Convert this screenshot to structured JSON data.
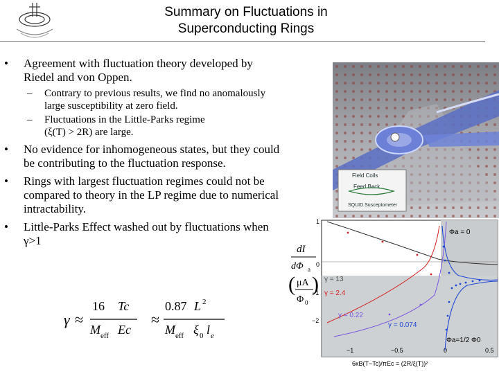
{
  "header": {
    "logo": "institution-seal-logo",
    "title_line1": "Summary on Fluctuations in",
    "title_line2": "Superconducting Rings"
  },
  "bullets": [
    {
      "text": "Agreement with fluctuation theory developed by Riedel and von Oppen.",
      "subs": [
        "Contrary to previous results, we find no anomalously large susceptibility at zero field.",
        "Fluctuations in the Little-Parks regime"
      ]
    },
    {
      "text": "No evidence for inhomogeneous states, but they could be contributing to the fluctuation response."
    },
    {
      "text": "Rings with largest fluctuation regimes could not be compared to theory in the LP regime due to numerical intractability."
    },
    {
      "text": "Little-Parks Effect washed out by fluctuations when γ>1"
    }
  ],
  "bullet_symbol": "•",
  "sub_symbol": "–",
  "sub2_condition": "(ξ(T) > 2R) are large.",
  "formula1": {
    "gamma": "γ",
    "approx": "≈",
    "num": "16",
    "num_var": "Tc",
    "den_var": "M",
    "den_sub": "eff",
    "den_var2": "Ec"
  },
  "formula2": {
    "approx": "≈",
    "num": "0.87",
    "num_var": "L",
    "num_sup": "2",
    "den_var": "M",
    "den_sub": "eff",
    "den_xi": "ξ",
    "den_xi_sub": "0",
    "den_l": "l",
    "den_l_sub": "e"
  },
  "photo": {
    "label_line1": "Field Coils",
    "label_line2": "Feed Back",
    "label_line3": "SQUID Susceptometer"
  },
  "plot": {
    "ylabel_top_num": "dI",
    "ylabel_top_den": "dΦ",
    "ylabel_top_sub": "a",
    "ylabel_bot_num": "μA",
    "ylabel_bot_den": "Φ",
    "ylabel_bot_sub": "0",
    "y_ticks": [
      "1",
      "0",
      "−1",
      "−2"
    ],
    "x_ticks": [
      "−1",
      "−0.5",
      "0",
      "0.5"
    ],
    "xlabel": "6κB(T−Tc)/πEc = (2R/ξ(T))²",
    "phi0_label": "Φa = 0",
    "phihalf_label": "Φa=1/2 Φ0",
    "gamma_labels": [
      "γ = 13",
      "γ = 2.4",
      "γ = 0.22",
      "γ = 0.074"
    ],
    "gamma_colors": [
      "#555555",
      "#d42020",
      "#7a55e0",
      "#1f46d6"
    ]
  }
}
